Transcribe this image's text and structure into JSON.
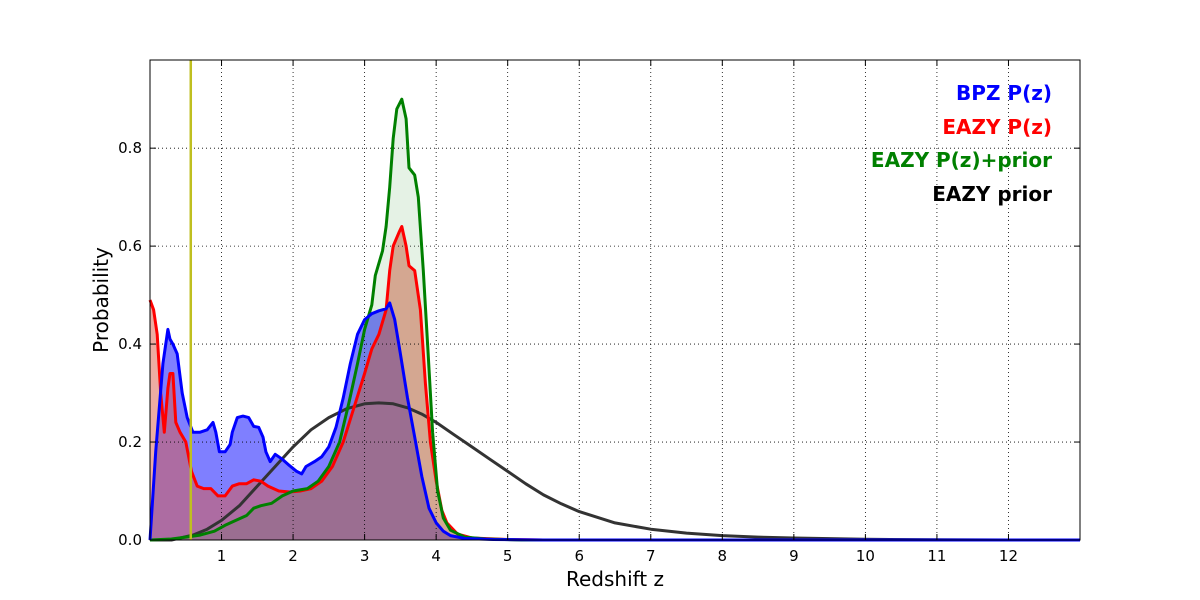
{
  "chart_data": {
    "type": "line",
    "title": "",
    "xlabel": "Redshift z",
    "ylabel": "Probability",
    "xlim": [
      0,
      13
    ],
    "ylim": [
      0,
      0.98
    ],
    "xticks": [
      1,
      2,
      3,
      4,
      5,
      6,
      7,
      8,
      9,
      10,
      11,
      12
    ],
    "xtick_labels": [
      "1",
      "2",
      "3",
      "4",
      "5",
      "6",
      "7",
      "8",
      "9",
      "10",
      "11",
      "12"
    ],
    "yticks": [
      0.0,
      0.2,
      0.4,
      0.6,
      0.8
    ],
    "ytick_labels": [
      "0.0",
      "0.2",
      "0.4",
      "0.6",
      "0.8"
    ],
    "grid": true,
    "legend_position": "top-right",
    "reference_line": {
      "x": 0.57,
      "color": "#bfbf1f"
    },
    "series": [
      {
        "name": "BPZ P(z)",
        "color": "#0000ff",
        "fill": "rgba(0,0,255,0.5)",
        "points": [
          [
            0,
            0
          ],
          [
            0.08,
            0.18
          ],
          [
            0.18,
            0.36
          ],
          [
            0.25,
            0.43
          ],
          [
            0.28,
            0.41
          ],
          [
            0.32,
            0.4
          ],
          [
            0.38,
            0.38
          ],
          [
            0.45,
            0.3
          ],
          [
            0.52,
            0.25
          ],
          [
            0.6,
            0.22
          ],
          [
            0.7,
            0.22
          ],
          [
            0.8,
            0.225
          ],
          [
            0.88,
            0.24
          ],
          [
            0.92,
            0.22
          ],
          [
            0.97,
            0.18
          ],
          [
            1.05,
            0.18
          ],
          [
            1.12,
            0.195
          ],
          [
            1.15,
            0.22
          ],
          [
            1.22,
            0.25
          ],
          [
            1.3,
            0.253
          ],
          [
            1.38,
            0.25
          ],
          [
            1.45,
            0.232
          ],
          [
            1.52,
            0.23
          ],
          [
            1.58,
            0.21
          ],
          [
            1.62,
            0.18
          ],
          [
            1.68,
            0.16
          ],
          [
            1.75,
            0.175
          ],
          [
            1.85,
            0.165
          ],
          [
            1.95,
            0.152
          ],
          [
            2.05,
            0.14
          ],
          [
            2.12,
            0.135
          ],
          [
            2.18,
            0.15
          ],
          [
            2.3,
            0.16
          ],
          [
            2.4,
            0.17
          ],
          [
            2.5,
            0.19
          ],
          [
            2.6,
            0.23
          ],
          [
            2.7,
            0.29
          ],
          [
            2.8,
            0.36
          ],
          [
            2.9,
            0.42
          ],
          [
            3.0,
            0.45
          ],
          [
            3.1,
            0.462
          ],
          [
            3.2,
            0.468
          ],
          [
            3.3,
            0.472
          ],
          [
            3.35,
            0.484
          ],
          [
            3.42,
            0.45
          ],
          [
            3.5,
            0.38
          ],
          [
            3.6,
            0.29
          ],
          [
            3.7,
            0.21
          ],
          [
            3.8,
            0.13
          ],
          [
            3.9,
            0.065
          ],
          [
            4.0,
            0.035
          ],
          [
            4.1,
            0.018
          ],
          [
            4.2,
            0.009
          ],
          [
            4.4,
            0.003
          ],
          [
            4.8,
            0.001
          ],
          [
            5.5,
            0.0
          ],
          [
            13,
            0.0
          ]
        ]
      },
      {
        "name": "EAZY P(z)",
        "color": "#ff0000",
        "fill": "rgba(220,90,70,0.5)",
        "points": [
          [
            0,
            0.49
          ],
          [
            0.05,
            0.47
          ],
          [
            0.1,
            0.42
          ],
          [
            0.15,
            0.3
          ],
          [
            0.2,
            0.22
          ],
          [
            0.25,
            0.31
          ],
          [
            0.28,
            0.34
          ],
          [
            0.32,
            0.34
          ],
          [
            0.36,
            0.24
          ],
          [
            0.42,
            0.22
          ],
          [
            0.5,
            0.2
          ],
          [
            0.58,
            0.14
          ],
          [
            0.66,
            0.11
          ],
          [
            0.75,
            0.105
          ],
          [
            0.85,
            0.105
          ],
          [
            0.95,
            0.09
          ],
          [
            1.05,
            0.09
          ],
          [
            1.15,
            0.11
          ],
          [
            1.25,
            0.115
          ],
          [
            1.35,
            0.115
          ],
          [
            1.45,
            0.123
          ],
          [
            1.55,
            0.12
          ],
          [
            1.65,
            0.11
          ],
          [
            1.8,
            0.1
          ],
          [
            1.95,
            0.098
          ],
          [
            2.1,
            0.1
          ],
          [
            2.25,
            0.105
          ],
          [
            2.4,
            0.12
          ],
          [
            2.55,
            0.15
          ],
          [
            2.7,
            0.2
          ],
          [
            2.85,
            0.27
          ],
          [
            3.0,
            0.34
          ],
          [
            3.1,
            0.39
          ],
          [
            3.2,
            0.42
          ],
          [
            3.3,
            0.47
          ],
          [
            3.35,
            0.55
          ],
          [
            3.4,
            0.6
          ],
          [
            3.48,
            0.628
          ],
          [
            3.52,
            0.64
          ],
          [
            3.58,
            0.6
          ],
          [
            3.62,
            0.56
          ],
          [
            3.7,
            0.55
          ],
          [
            3.78,
            0.47
          ],
          [
            3.85,
            0.32
          ],
          [
            3.92,
            0.2
          ],
          [
            4.0,
            0.12
          ],
          [
            4.08,
            0.06
          ],
          [
            4.15,
            0.035
          ],
          [
            4.3,
            0.012
          ],
          [
            4.5,
            0.004
          ],
          [
            5.0,
            0.001
          ],
          [
            5.5,
            0.0
          ],
          [
            13,
            0.0
          ]
        ]
      },
      {
        "name": "EAZY P(z)+prior",
        "color": "#008000",
        "fill": "rgba(0,128,0,0.1)",
        "points": [
          [
            0,
            0
          ],
          [
            0.3,
            0.002
          ],
          [
            0.5,
            0.006
          ],
          [
            0.7,
            0.01
          ],
          [
            0.9,
            0.018
          ],
          [
            1.05,
            0.03
          ],
          [
            1.2,
            0.04
          ],
          [
            1.35,
            0.05
          ],
          [
            1.45,
            0.065
          ],
          [
            1.55,
            0.07
          ],
          [
            1.7,
            0.075
          ],
          [
            1.85,
            0.09
          ],
          [
            2.0,
            0.1
          ],
          [
            2.2,
            0.105
          ],
          [
            2.35,
            0.12
          ],
          [
            2.5,
            0.15
          ],
          [
            2.65,
            0.2
          ],
          [
            2.78,
            0.28
          ],
          [
            2.9,
            0.36
          ],
          [
            3.0,
            0.43
          ],
          [
            3.1,
            0.48
          ],
          [
            3.15,
            0.54
          ],
          [
            3.25,
            0.59
          ],
          [
            3.3,
            0.64
          ],
          [
            3.35,
            0.72
          ],
          [
            3.4,
            0.82
          ],
          [
            3.45,
            0.88
          ],
          [
            3.52,
            0.9
          ],
          [
            3.58,
            0.86
          ],
          [
            3.62,
            0.76
          ],
          [
            3.7,
            0.745
          ],
          [
            3.75,
            0.7
          ],
          [
            3.82,
            0.55
          ],
          [
            3.88,
            0.4
          ],
          [
            3.95,
            0.22
          ],
          [
            4.02,
            0.1
          ],
          [
            4.1,
            0.045
          ],
          [
            4.2,
            0.02
          ],
          [
            4.4,
            0.006
          ],
          [
            4.7,
            0.002
          ],
          [
            5.2,
            0.0
          ],
          [
            13,
            0.0
          ]
        ]
      },
      {
        "name": "EAZY prior",
        "color": "#333333",
        "fill": "",
        "points": [
          [
            0,
            0
          ],
          [
            0.3,
            0.0
          ],
          [
            0.6,
            0.01
          ],
          [
            0.8,
            0.022
          ],
          [
            1.0,
            0.04
          ],
          [
            1.25,
            0.07
          ],
          [
            1.5,
            0.11
          ],
          [
            1.75,
            0.15
          ],
          [
            2.0,
            0.19
          ],
          [
            2.25,
            0.225
          ],
          [
            2.5,
            0.25
          ],
          [
            2.75,
            0.268
          ],
          [
            3.0,
            0.278
          ],
          [
            3.2,
            0.28
          ],
          [
            3.4,
            0.278
          ],
          [
            3.6,
            0.27
          ],
          [
            3.8,
            0.257
          ],
          [
            4.0,
            0.24
          ],
          [
            4.25,
            0.215
          ],
          [
            4.5,
            0.19
          ],
          [
            4.75,
            0.165
          ],
          [
            5.0,
            0.14
          ],
          [
            5.25,
            0.115
          ],
          [
            5.5,
            0.092
          ],
          [
            5.75,
            0.074
          ],
          [
            6.0,
            0.058
          ],
          [
            6.5,
            0.035
          ],
          [
            7.0,
            0.022
          ],
          [
            7.5,
            0.014
          ],
          [
            8.0,
            0.009
          ],
          [
            8.5,
            0.006
          ],
          [
            9.0,
            0.004
          ],
          [
            10.0,
            0.0015
          ],
          [
            11.0,
            0.0005
          ],
          [
            12.0,
            0.0001
          ],
          [
            13,
            0.0
          ]
        ]
      }
    ]
  }
}
